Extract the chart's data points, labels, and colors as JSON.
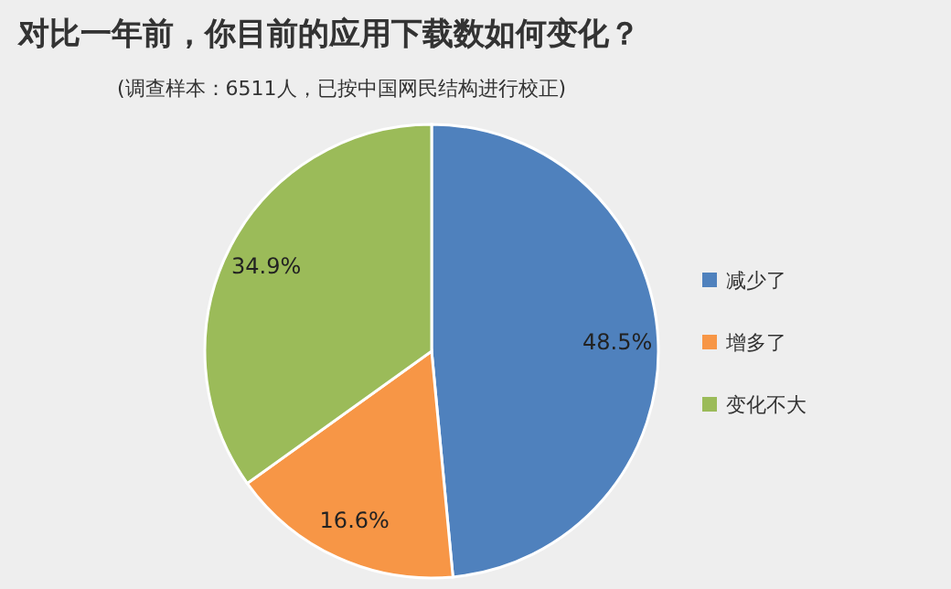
{
  "chart_data": {
    "type": "pie",
    "title": "对比一年前，你目前的应用下载数如何变化？",
    "subtitle": "(调查样本：6511人，已按中国网民结构进行校正)",
    "categories": [
      "减少了",
      "增多了",
      "变化不大"
    ],
    "values": [
      48.5,
      16.6,
      34.9
    ],
    "value_labels": [
      "48.5%",
      "16.6%",
      "34.9%"
    ],
    "colors": [
      "#4f81bd",
      "#f79646",
      "#9bbb59"
    ],
    "legend": "right"
  }
}
